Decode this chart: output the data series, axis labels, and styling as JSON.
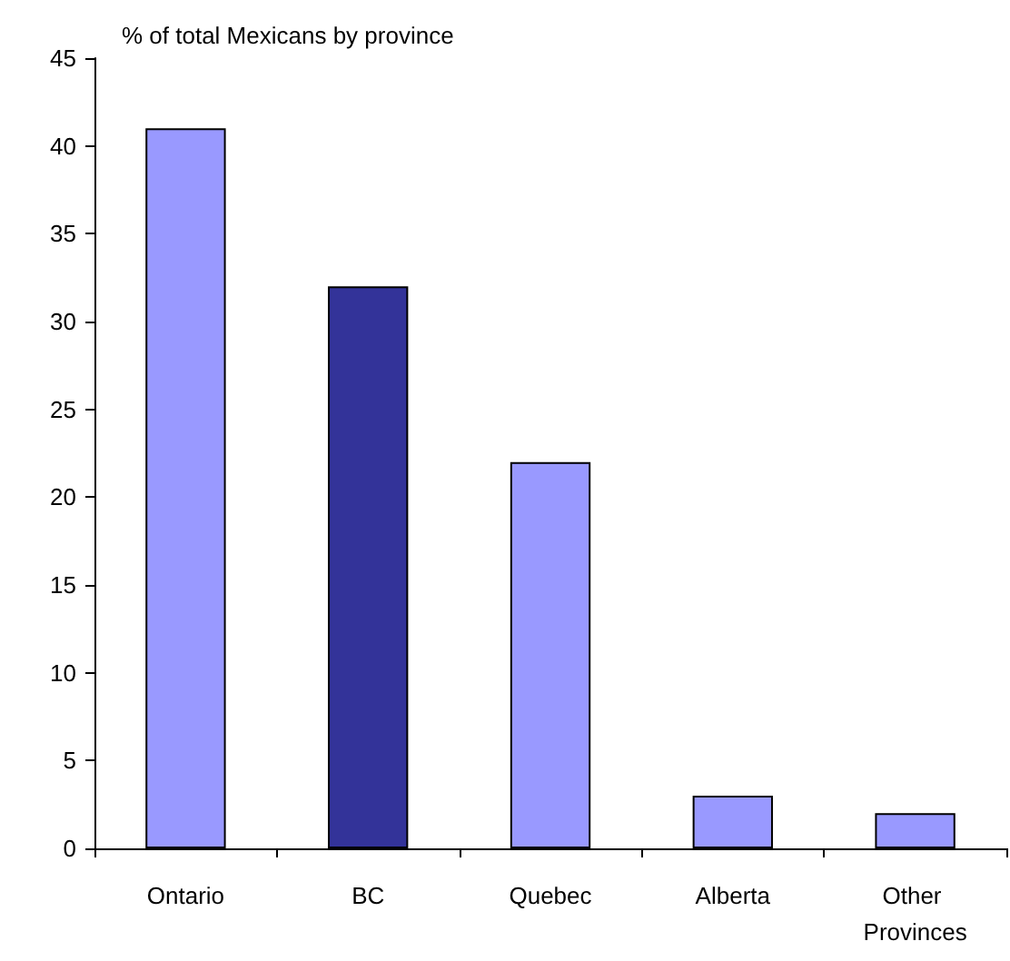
{
  "chart_data": {
    "type": "bar",
    "title": "% of total Mexicans by province",
    "categories": [
      "Ontario",
      "BC",
      "Quebec",
      "Alberta",
      "Other Provinces"
    ],
    "values": [
      41,
      32,
      22,
      3,
      2
    ],
    "colors": [
      "#9999ff",
      "#333399",
      "#9999ff",
      "#9999ff",
      "#9999ff"
    ],
    "ylim": [
      0,
      45
    ],
    "yticks": [
      0,
      5,
      10,
      15,
      20,
      25,
      30,
      35,
      40,
      45
    ],
    "grid": false
  }
}
